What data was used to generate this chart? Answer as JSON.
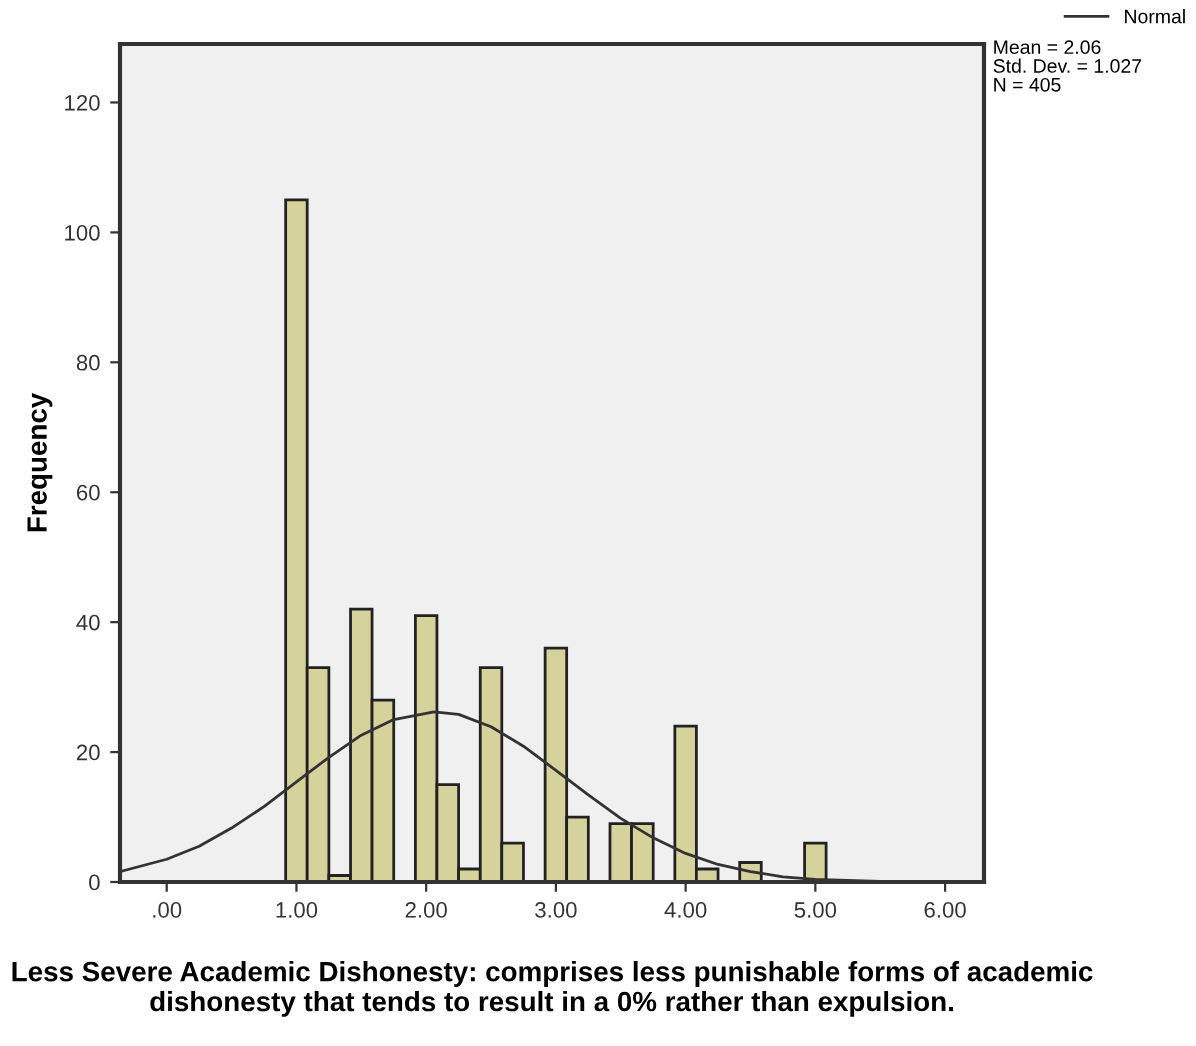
{
  "chart_data": {
    "type": "histogram",
    "xlabel": "Less Severe Academic Dishonesty: comprises less punishable forms of academic dishonesty that tends to result in a 0% rather than expulsion.",
    "ylabel": "Frequency",
    "bins": [
      0.917,
      1.083,
      1.25,
      1.417,
      1.583,
      1.75,
      1.917,
      2.083,
      2.25,
      2.417,
      2.583,
      2.75,
      2.917,
      3.083,
      3.25,
      3.417,
      3.583,
      3.75,
      3.917,
      4.083,
      4.25,
      4.417,
      4.583,
      4.75,
      4.917,
      5.083
    ],
    "values": [
      105,
      33,
      1,
      42,
      28,
      0,
      41,
      15,
      2,
      33,
      6,
      0,
      36,
      10,
      0,
      9,
      9,
      0,
      24,
      2,
      0,
      3,
      0,
      0,
      6
    ],
    "color": "#d6d29c",
    "series": [
      {
        "type": "line",
        "name": "Normal",
        "color": "#333333",
        "x": [
          -0.36,
          0,
          0.25,
          0.5,
          0.75,
          1.0,
          1.25,
          1.5,
          1.75,
          2.06,
          2.25,
          2.5,
          2.75,
          3.0,
          3.25,
          3.5,
          3.75,
          4.0,
          4.25,
          4.5,
          4.75,
          5.0,
          5.5,
          6.0,
          6.3
        ],
        "values": [
          1.6,
          3.5,
          5.5,
          8.3,
          11.6,
          15.4,
          19.2,
          22.6,
          25.0,
          26.2,
          25.8,
          23.9,
          20.9,
          17.2,
          13.4,
          9.8,
          6.8,
          4.4,
          2.7,
          1.6,
          0.8,
          0.4,
          0.1,
          0.0,
          0.0
        ]
      }
    ],
    "xlim": [
      -0.36,
      6.3
    ],
    "ylim": [
      0,
      129
    ],
    "xticks": [
      {
        "value": 0,
        "label": ".00"
      },
      {
        "value": 1,
        "label": "1.00"
      },
      {
        "value": 2,
        "label": "2.00"
      },
      {
        "value": 3,
        "label": "3.00"
      },
      {
        "value": 4,
        "label": "4.00"
      },
      {
        "value": 5,
        "label": "5.00"
      },
      {
        "value": 6,
        "label": "6.00"
      }
    ],
    "yticks": [
      0,
      20,
      40,
      60,
      80,
      100,
      120
    ],
    "annotations": [
      "Mean = 2.06",
      "Std. Dev. = 1.027",
      "N = 405"
    ],
    "legend": "top right",
    "grid": false,
    "marker": "none",
    "line_style": "solid"
  }
}
